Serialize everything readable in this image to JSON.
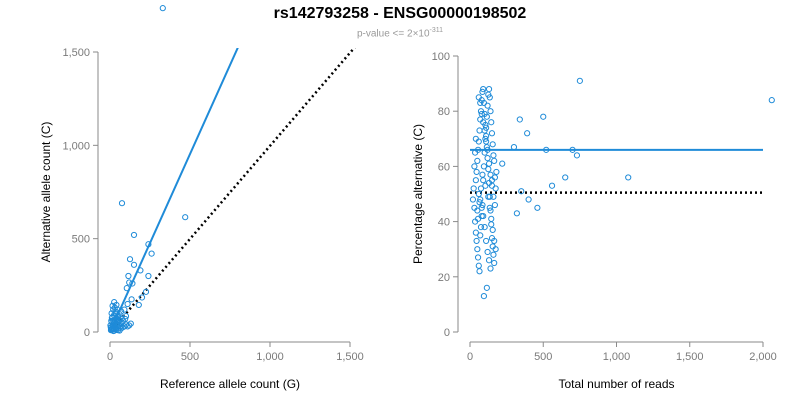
{
  "title": "rs142793258 - ENSG00000198502",
  "subtitle": {
    "prefix": "p-value <= 2×10",
    "exponent": "-311"
  },
  "colors": {
    "points": "#1f8bd8",
    "fit_line": "#1f8bd8",
    "reference_line": "#000000",
    "axis": "#8a8a8a",
    "tick_label": "#7a7a7a",
    "axis_title": "#000000",
    "subtitle": "#9a9a9a"
  },
  "chart_data": [
    {
      "type": "scatter",
      "xlabel": "Reference allele count (G)",
      "ylabel": "Alternative allele count (C)",
      "xlim": [
        0,
        1500
      ],
      "ylim": [
        0,
        1500
      ],
      "xticks": [
        0,
        500,
        1000,
        1500
      ],
      "xtick_labels": [
        "0",
        "500",
        "1,000",
        "1,500"
      ],
      "yticks": [
        0,
        500,
        1000,
        1500
      ],
      "ytick_labels": [
        "0",
        "500",
        "1,000",
        "1,500"
      ],
      "grid": false,
      "fit_line": {
        "from": [
          0,
          0
        ],
        "to": [
          910,
          1735
        ],
        "style": "solid"
      },
      "reference_line": {
        "from": [
          0,
          0
        ],
        "to": [
          1740,
          1735
        ],
        "style": "dotted"
      },
      "points": [
        [
          330,
          1735
        ],
        [
          75,
          690
        ],
        [
          470,
          615
        ],
        [
          150,
          520
        ],
        [
          240,
          470
        ],
        [
          260,
          420
        ],
        [
          125,
          390
        ],
        [
          150,
          360
        ],
        [
          190,
          330
        ],
        [
          115,
          300
        ],
        [
          240,
          300
        ],
        [
          120,
          265
        ],
        [
          140,
          260
        ],
        [
          105,
          235
        ],
        [
          225,
          215
        ],
        [
          200,
          185
        ],
        [
          135,
          175
        ],
        [
          180,
          145
        ],
        [
          110,
          150
        ],
        [
          90,
          120
        ],
        [
          70,
          110
        ],
        [
          60,
          95
        ],
        [
          50,
          85
        ],
        [
          40,
          70
        ],
        [
          30,
          65
        ],
        [
          20,
          60
        ],
        [
          10,
          55
        ],
        [
          25,
          50
        ],
        [
          35,
          45
        ],
        [
          45,
          40
        ],
        [
          55,
          35
        ],
        [
          65,
          30
        ],
        [
          15,
          30
        ],
        [
          5,
          25
        ],
        [
          20,
          20
        ],
        [
          30,
          15
        ],
        [
          40,
          12
        ],
        [
          50,
          10
        ],
        [
          60,
          8
        ],
        [
          70,
          20
        ],
        [
          80,
          25
        ],
        [
          90,
          30
        ],
        [
          100,
          40
        ],
        [
          110,
          30
        ],
        [
          120,
          35
        ],
        [
          130,
          45
        ],
        [
          10,
          100
        ],
        [
          20,
          120
        ],
        [
          30,
          130
        ],
        [
          40,
          145
        ],
        [
          15,
          80
        ],
        [
          25,
          90
        ],
        [
          35,
          110
        ],
        [
          8,
          60
        ],
        [
          12,
          75
        ],
        [
          18,
          40
        ],
        [
          22,
          5
        ],
        [
          28,
          8
        ],
        [
          32,
          25
        ],
        [
          38,
          18
        ],
        [
          6,
          10
        ],
        [
          44,
          60
        ],
        [
          48,
          80
        ],
        [
          52,
          55
        ],
        [
          58,
          65
        ],
        [
          66,
          50
        ],
        [
          74,
          70
        ],
        [
          82,
          60
        ],
        [
          95,
          70
        ],
        [
          100,
          85
        ],
        [
          3,
          35
        ],
        [
          8,
          15
        ],
        [
          14,
          20
        ],
        [
          24,
          28
        ],
        [
          34,
          38
        ],
        [
          42,
          28
        ],
        [
          16,
          140
        ],
        [
          26,
          160
        ],
        [
          36,
          100
        ],
        [
          46,
          120
        ]
      ]
    },
    {
      "type": "scatter",
      "xlabel": "Total number of reads",
      "ylabel": "Percentage alternative (C)",
      "xlim": [
        0,
        2000
      ],
      "ylim": [
        0,
        100
      ],
      "xticks": [
        0,
        500,
        1000,
        1500,
        2000
      ],
      "xtick_labels": [
        "0",
        "500",
        "1,000",
        "1,500",
        "2,000"
      ],
      "yticks": [
        0,
        20,
        40,
        60,
        80,
        100
      ],
      "ytick_labels": [
        "0",
        "20",
        "40",
        "60",
        "80",
        "100"
      ],
      "grid": false,
      "fit_line": {
        "y": 66,
        "x_range": [
          0,
          2000
        ],
        "style": "solid"
      },
      "reference_line": {
        "y": 50.5,
        "x_range": [
          0,
          2000
        ],
        "style": "dotted"
      },
      "points": [
        [
          2060,
          84
        ],
        [
          750,
          91
        ],
        [
          500,
          78
        ],
        [
          340,
          77
        ],
        [
          390,
          72
        ],
        [
          300,
          67
        ],
        [
          520,
          66
        ],
        [
          560,
          53
        ],
        [
          650,
          56
        ],
        [
          700,
          66
        ],
        [
          730,
          64
        ],
        [
          1080,
          56
        ],
        [
          460,
          45
        ],
        [
          400,
          48
        ],
        [
          350,
          51
        ],
        [
          320,
          43
        ],
        [
          220,
          61
        ],
        [
          180,
          58
        ],
        [
          150,
          55
        ],
        [
          20,
          48
        ],
        [
          25,
          52
        ],
        [
          30,
          45
        ],
        [
          35,
          40
        ],
        [
          40,
          36
        ],
        [
          45,
          33
        ],
        [
          50,
          30
        ],
        [
          55,
          27
        ],
        [
          60,
          24
        ],
        [
          65,
          22
        ],
        [
          70,
          35
        ],
        [
          75,
          38
        ],
        [
          80,
          42
        ],
        [
          85,
          46
        ],
        [
          90,
          55
        ],
        [
          95,
          60
        ],
        [
          100,
          65
        ],
        [
          105,
          70
        ],
        [
          110,
          74
        ],
        [
          115,
          78
        ],
        [
          120,
          82
        ],
        [
          125,
          86
        ],
        [
          130,
          88
        ],
        [
          135,
          85
        ],
        [
          140,
          80
        ],
        [
          145,
          76
        ],
        [
          150,
          72
        ],
        [
          155,
          68
        ],
        [
          160,
          64
        ],
        [
          165,
          62
        ],
        [
          170,
          56
        ],
        [
          175,
          52
        ],
        [
          40,
          55
        ],
        [
          45,
          58
        ],
        [
          50,
          62
        ],
        [
          55,
          66
        ],
        [
          60,
          69
        ],
        [
          65,
          73
        ],
        [
          70,
          77
        ],
        [
          75,
          80
        ],
        [
          80,
          84
        ],
        [
          85,
          87
        ],
        [
          90,
          88
        ],
        [
          95,
          83
        ],
        [
          100,
          79
        ],
        [
          105,
          75
        ],
        [
          110,
          71
        ],
        [
          115,
          67
        ],
        [
          120,
          63
        ],
        [
          125,
          59
        ],
        [
          130,
          54
        ],
        [
          135,
          49
        ],
        [
          140,
          44
        ],
        [
          145,
          39
        ],
        [
          150,
          34
        ],
        [
          155,
          31
        ],
        [
          160,
          28
        ],
        [
          165,
          25
        ],
        [
          30,
          60
        ],
        [
          35,
          65
        ],
        [
          40,
          70
        ],
        [
          60,
          50
        ],
        [
          70,
          48
        ],
        [
          80,
          45
        ],
        [
          90,
          42
        ],
        [
          100,
          38
        ],
        [
          110,
          33
        ],
        [
          120,
          29
        ],
        [
          130,
          26
        ],
        [
          140,
          23
        ],
        [
          95,
          13
        ],
        [
          115,
          16
        ],
        [
          50,
          44
        ],
        [
          55,
          41
        ],
        [
          65,
          47
        ],
        [
          75,
          52
        ],
        [
          85,
          57
        ],
        [
          105,
          53
        ],
        [
          125,
          49
        ],
        [
          135,
          45
        ],
        [
          145,
          41
        ],
        [
          155,
          37
        ],
        [
          165,
          33
        ],
        [
          175,
          30
        ],
        [
          60,
          85
        ],
        [
          70,
          83
        ],
        [
          80,
          79
        ],
        [
          90,
          76
        ],
        [
          100,
          73
        ],
        [
          110,
          69
        ],
        [
          120,
          66
        ],
        [
          130,
          61
        ],
        [
          140,
          57
        ],
        [
          150,
          53
        ],
        [
          160,
          49
        ],
        [
          170,
          46
        ]
      ]
    }
  ]
}
